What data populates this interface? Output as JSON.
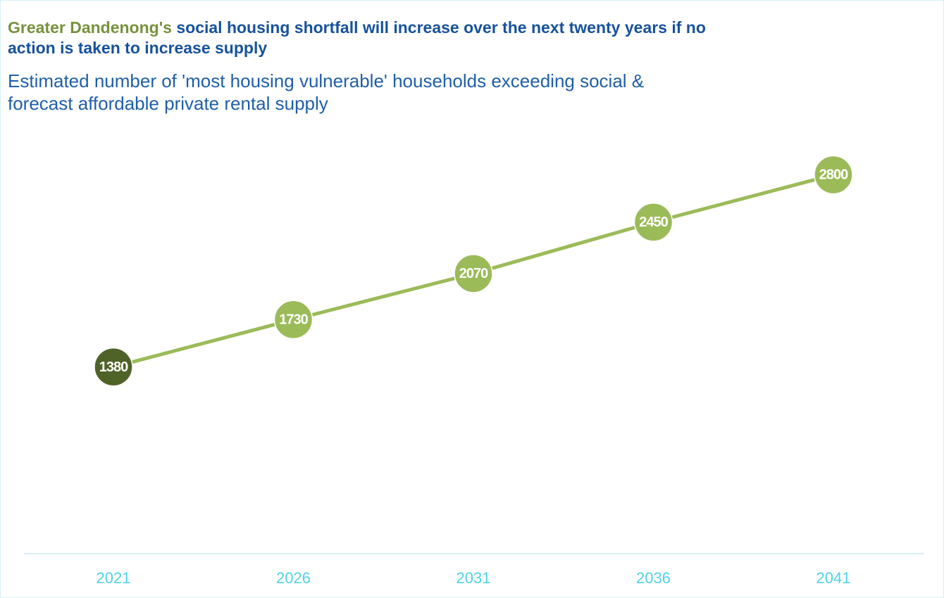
{
  "chart_data": {
    "type": "line",
    "title": {
      "highlight": "Greater Dandenong's",
      "text": "social housing shortfall will increase over the next twenty years if no action is taken to increase supply"
    },
    "subtitle": "Estimated number of 'most housing vulnerable' households exceeding social &  forecast affordable private rental supply",
    "categories": [
      "2021",
      "2026",
      "2031",
      "2036",
      "2041"
    ],
    "series": [
      {
        "values": [
          1380,
          1730,
          2070,
          2450,
          2800
        ],
        "color": "#9bbb59",
        "marker_colors": [
          "#4f6228",
          "#9bbb59",
          "#9bbb59",
          "#9bbb59",
          "#9bbb59"
        ]
      }
    ],
    "ylim": [
      0,
      3000
    ]
  }
}
